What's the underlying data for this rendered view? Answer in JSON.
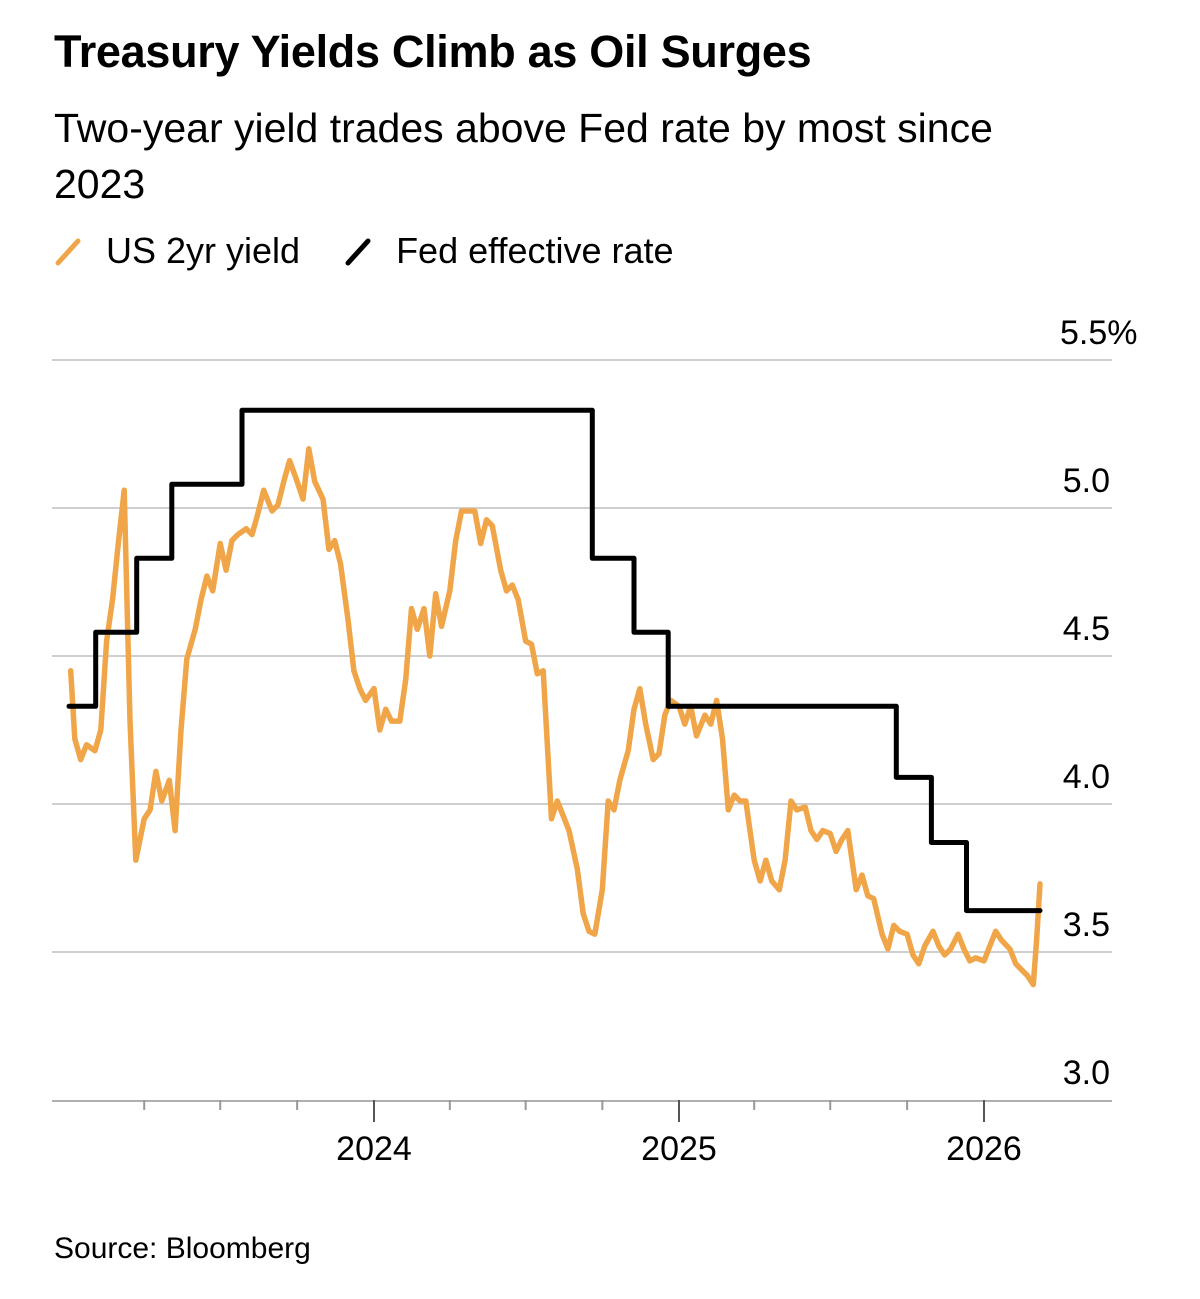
{
  "header": {
    "title": "Treasury Yields Climb as Oil Surges",
    "subtitle": "Two-year yield trades above Fed rate by most since 2023"
  },
  "footer": {
    "source": "Source: Bloomberg"
  },
  "chart_data": {
    "type": "line",
    "title": "Treasury Yields Climb as Oil Surges",
    "subtitle": "Two-year yield trades above Fed rate by most since 2023",
    "xlabel": "",
    "ylabel": "",
    "ylim": [
      3.0,
      5.5
    ],
    "xlim": [
      "2023-01-01",
      "2026-05-01"
    ],
    "y_ticks": [
      3.0,
      3.5,
      4.0,
      4.5,
      5.0,
      5.5
    ],
    "y_tick_labels": [
      "3.0",
      "3.5",
      "4.0",
      "4.5",
      "5.0",
      "5.5%"
    ],
    "y_axis_side": "right",
    "x_major_ticks": [
      "2024-01-01",
      "2025-01-01",
      "2026-01-01"
    ],
    "x_tick_labels": [
      "2024",
      "2025",
      "2026"
    ],
    "x_minor_ticks": [
      "2023-04-01",
      "2023-07-01",
      "2023-10-01",
      "2024-04-01",
      "2024-07-01",
      "2024-10-01",
      "2025-04-01",
      "2025-07-01",
      "2025-10-01"
    ],
    "grid": "horizontal",
    "legend_placement": "top-left",
    "source": "Source: Bloomberg",
    "series": [
      {
        "name": "US 2yr yield",
        "color": "#F0A548",
        "step": false,
        "points": [
          [
            "2023-01-03",
            4.45
          ],
          [
            "2023-01-08",
            4.22
          ],
          [
            "2023-01-15",
            4.15
          ],
          [
            "2023-01-22",
            4.2
          ],
          [
            "2023-02-01",
            4.18
          ],
          [
            "2023-02-08",
            4.25
          ],
          [
            "2023-02-15",
            4.55
          ],
          [
            "2023-02-22",
            4.69
          ],
          [
            "2023-03-01",
            4.88
          ],
          [
            "2023-03-08",
            5.06
          ],
          [
            "2023-03-15",
            4.28
          ],
          [
            "2023-03-22",
            3.81
          ],
          [
            "2023-04-01",
            3.95
          ],
          [
            "2023-04-08",
            3.98
          ],
          [
            "2023-04-15",
            4.11
          ],
          [
            "2023-04-22",
            4.01
          ],
          [
            "2023-05-01",
            4.08
          ],
          [
            "2023-05-08",
            3.91
          ],
          [
            "2023-05-15",
            4.25
          ],
          [
            "2023-05-22",
            4.49
          ],
          [
            "2023-06-01",
            4.59
          ],
          [
            "2023-06-08",
            4.69
          ],
          [
            "2023-06-15",
            4.77
          ],
          [
            "2023-06-22",
            4.72
          ],
          [
            "2023-07-01",
            4.88
          ],
          [
            "2023-07-08",
            4.79
          ],
          [
            "2023-07-15",
            4.89
          ],
          [
            "2023-07-22",
            4.91
          ],
          [
            "2023-08-01",
            4.93
          ],
          [
            "2023-08-08",
            4.91
          ],
          [
            "2023-08-15",
            4.98
          ],
          [
            "2023-08-22",
            5.06
          ],
          [
            "2023-09-01",
            4.99
          ],
          [
            "2023-09-08",
            5.01
          ],
          [
            "2023-09-15",
            5.09
          ],
          [
            "2023-09-22",
            5.16
          ],
          [
            "2023-10-01",
            5.09
          ],
          [
            "2023-10-08",
            5.03
          ],
          [
            "2023-10-15",
            5.2
          ],
          [
            "2023-10-22",
            5.09
          ],
          [
            "2023-11-01",
            5.03
          ],
          [
            "2023-11-08",
            4.86
          ],
          [
            "2023-11-15",
            4.89
          ],
          [
            "2023-11-22",
            4.81
          ],
          [
            "2023-12-01",
            4.62
          ],
          [
            "2023-12-08",
            4.45
          ],
          [
            "2023-12-15",
            4.39
          ],
          [
            "2023-12-22",
            4.35
          ],
          [
            "2024-01-01",
            4.39
          ],
          [
            "2024-01-08",
            4.25
          ],
          [
            "2024-01-15",
            4.32
          ],
          [
            "2024-01-22",
            4.28
          ],
          [
            "2024-02-01",
            4.28
          ],
          [
            "2024-02-08",
            4.42
          ],
          [
            "2024-02-15",
            4.66
          ],
          [
            "2024-02-22",
            4.59
          ],
          [
            "2024-03-01",
            4.66
          ],
          [
            "2024-03-08",
            4.5
          ],
          [
            "2024-03-15",
            4.71
          ],
          [
            "2024-03-22",
            4.6
          ],
          [
            "2024-04-01",
            4.72
          ],
          [
            "2024-04-08",
            4.89
          ],
          [
            "2024-04-15",
            4.99
          ],
          [
            "2024-04-22",
            4.99
          ],
          [
            "2024-05-01",
            4.99
          ],
          [
            "2024-05-08",
            4.88
          ],
          [
            "2024-05-15",
            4.96
          ],
          [
            "2024-05-22",
            4.94
          ],
          [
            "2024-06-01",
            4.79
          ],
          [
            "2024-06-08",
            4.72
          ],
          [
            "2024-06-15",
            4.74
          ],
          [
            "2024-06-22",
            4.69
          ],
          [
            "2024-07-01",
            4.55
          ],
          [
            "2024-07-08",
            4.54
          ],
          [
            "2024-07-15",
            4.44
          ],
          [
            "2024-07-22",
            4.45
          ],
          [
            "2024-08-01",
            3.95
          ],
          [
            "2024-08-08",
            4.01
          ],
          [
            "2024-08-15",
            3.96
          ],
          [
            "2024-08-22",
            3.91
          ],
          [
            "2024-09-01",
            3.78
          ],
          [
            "2024-09-08",
            3.63
          ],
          [
            "2024-09-15",
            3.57
          ],
          [
            "2024-09-22",
            3.56
          ],
          [
            "2024-10-01",
            3.71
          ],
          [
            "2024-10-08",
            4.01
          ],
          [
            "2024-10-15",
            3.98
          ],
          [
            "2024-10-22",
            4.08
          ],
          [
            "2024-11-01",
            4.18
          ],
          [
            "2024-11-08",
            4.32
          ],
          [
            "2024-11-15",
            4.39
          ],
          [
            "2024-11-22",
            4.27
          ],
          [
            "2024-12-01",
            4.15
          ],
          [
            "2024-12-08",
            4.17
          ],
          [
            "2024-12-15",
            4.3
          ],
          [
            "2024-12-22",
            4.35
          ],
          [
            "2025-01-01",
            4.33
          ],
          [
            "2025-01-08",
            4.27
          ],
          [
            "2025-01-15",
            4.33
          ],
          [
            "2025-01-22",
            4.23
          ],
          [
            "2025-02-01",
            4.3
          ],
          [
            "2025-02-08",
            4.27
          ],
          [
            "2025-02-15",
            4.35
          ],
          [
            "2025-02-22",
            4.22
          ],
          [
            "2025-03-01",
            3.98
          ],
          [
            "2025-03-08",
            4.03
          ],
          [
            "2025-03-15",
            4.01
          ],
          [
            "2025-03-22",
            4.01
          ],
          [
            "2025-04-01",
            3.81
          ],
          [
            "2025-04-08",
            3.74
          ],
          [
            "2025-04-15",
            3.81
          ],
          [
            "2025-04-22",
            3.74
          ],
          [
            "2025-05-01",
            3.71
          ],
          [
            "2025-05-08",
            3.81
          ],
          [
            "2025-05-15",
            4.01
          ],
          [
            "2025-05-22",
            3.98
          ],
          [
            "2025-06-01",
            3.99
          ],
          [
            "2025-06-08",
            3.91
          ],
          [
            "2025-06-15",
            3.88
          ],
          [
            "2025-06-22",
            3.91
          ],
          [
            "2025-07-01",
            3.9
          ],
          [
            "2025-07-08",
            3.84
          ],
          [
            "2025-07-15",
            3.88
          ],
          [
            "2025-07-22",
            3.91
          ],
          [
            "2025-08-01",
            3.71
          ],
          [
            "2025-08-08",
            3.76
          ],
          [
            "2025-08-15",
            3.69
          ],
          [
            "2025-08-22",
            3.68
          ],
          [
            "2025-09-01",
            3.56
          ],
          [
            "2025-09-08",
            3.51
          ],
          [
            "2025-09-15",
            3.59
          ],
          [
            "2025-09-22",
            3.57
          ],
          [
            "2025-10-01",
            3.56
          ],
          [
            "2025-10-08",
            3.49
          ],
          [
            "2025-10-15",
            3.46
          ],
          [
            "2025-10-22",
            3.52
          ],
          [
            "2025-11-01",
            3.57
          ],
          [
            "2025-11-08",
            3.52
          ],
          [
            "2025-11-15",
            3.49
          ],
          [
            "2025-11-22",
            3.51
          ],
          [
            "2025-12-01",
            3.56
          ],
          [
            "2025-12-08",
            3.51
          ],
          [
            "2025-12-15",
            3.47
          ],
          [
            "2025-12-22",
            3.48
          ],
          [
            "2026-01-01",
            3.47
          ],
          [
            "2026-01-08",
            3.52
          ],
          [
            "2026-01-15",
            3.57
          ],
          [
            "2026-01-22",
            3.54
          ],
          [
            "2026-02-01",
            3.51
          ],
          [
            "2026-02-08",
            3.46
          ],
          [
            "2026-02-15",
            3.44
          ],
          [
            "2026-02-22",
            3.42
          ],
          [
            "2026-03-01",
            3.39
          ],
          [
            "2026-03-05",
            3.54
          ],
          [
            "2026-03-09",
            3.73
          ]
        ]
      },
      {
        "name": "Fed effective rate",
        "color": "#000000",
        "step": true,
        "points": [
          [
            "2023-01-01",
            4.33
          ],
          [
            "2023-02-02",
            4.58
          ],
          [
            "2023-03-23",
            4.83
          ],
          [
            "2023-05-04",
            5.08
          ],
          [
            "2023-07-27",
            5.33
          ],
          [
            "2024-09-19",
            4.83
          ],
          [
            "2024-11-08",
            4.58
          ],
          [
            "2024-12-19",
            4.33
          ],
          [
            "2025-09-18",
            4.09
          ],
          [
            "2025-10-30",
            3.87
          ],
          [
            "2025-12-11",
            3.64
          ],
          [
            "2026-03-09",
            3.64
          ]
        ]
      }
    ]
  }
}
